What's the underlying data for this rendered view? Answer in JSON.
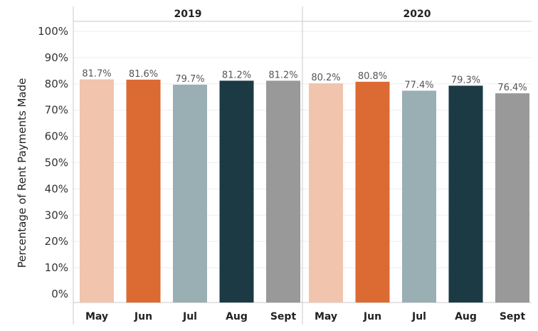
{
  "chart_data": {
    "type": "bar",
    "title": "",
    "xlabel": "",
    "ylabel": "Percentage of Rent Payments Made",
    "ylim": [
      0,
      100
    ],
    "y_ticks": [
      "0%",
      "10%",
      "20%",
      "30%",
      "40%",
      "50%",
      "60%",
      "70%",
      "80%",
      "90%",
      "100%"
    ],
    "grid": true,
    "legend": "none",
    "categories": [
      "May",
      "Jun",
      "Jul",
      "Aug",
      "Sept"
    ],
    "bar_colors": [
      "#f1c4ad",
      "#dc6a33",
      "#9aafb3",
      "#1b3a44",
      "#999999"
    ],
    "panels": [
      {
        "name": "2019",
        "values": [
          81.7,
          81.6,
          79.7,
          81.2,
          81.2
        ],
        "labels": [
          "81.7%",
          "81.6%",
          "79.7%",
          "81.2%",
          "81.2%"
        ]
      },
      {
        "name": "2020",
        "values": [
          80.2,
          80.8,
          77.4,
          79.3,
          76.4
        ],
        "labels": [
          "80.2%",
          "80.8%",
          "77.4%",
          "79.3%",
          "76.4%"
        ]
      }
    ]
  }
}
